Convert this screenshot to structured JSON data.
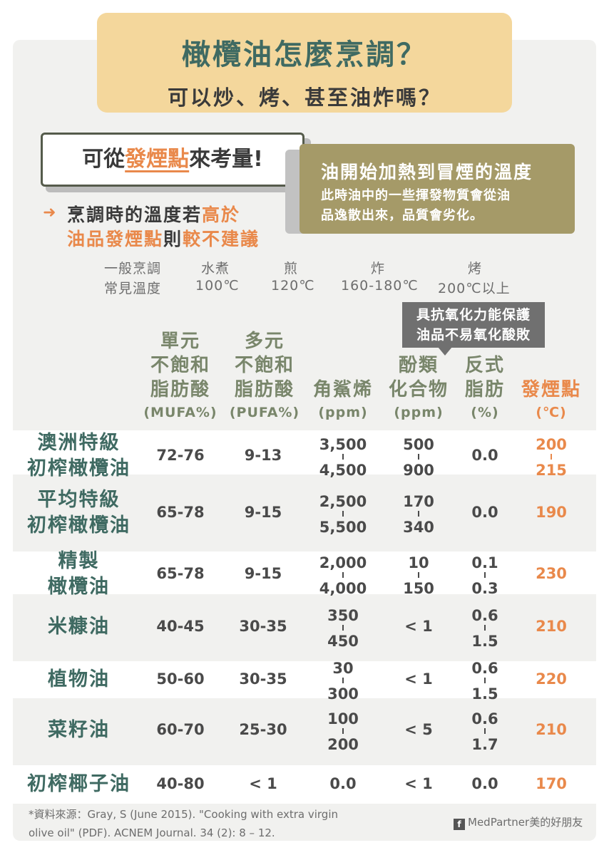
{
  "title": {
    "main": "橄欖油怎麼烹調？",
    "sub": "可以炒、烤、甚至油炸嗎？"
  },
  "consider": {
    "prefix": "可從",
    "highlight": "發煙點",
    "suffix": "來考量!"
  },
  "definition": {
    "title": "油開始加熱到冒煙的溫度",
    "line1": "此時油中的一些揮發物質會從油",
    "line2": "品逸散出來，品質會劣化。"
  },
  "advice": {
    "l1_a": "烹調時的溫度若",
    "l1_b": "高於",
    "l2_a": "油品發煙點",
    "l2_b": "則",
    "l2_c": "較不建議"
  },
  "cooking_temps": {
    "label1": "一般烹調",
    "label2": "常見溫度",
    "methods": [
      {
        "name": "水煮",
        "temp": "100℃"
      },
      {
        "name": "煎",
        "temp": "120℃"
      },
      {
        "name": "炸",
        "temp": "160-180℃"
      },
      {
        "name": "烤",
        "temp": "200℃以上"
      }
    ]
  },
  "callout": {
    "line1": "具抗氧化力能保護",
    "line2": "油品不易氧化酸敗"
  },
  "columns": [
    {
      "lines": [
        "單元",
        "不飽和",
        "脂肪酸"
      ],
      "unit": "(MUFA%)"
    },
    {
      "lines": [
        "多元",
        "不飽和",
        "脂肪酸"
      ],
      "unit": "(PUFA%)"
    },
    {
      "lines": [
        "角鯊烯"
      ],
      "unit": "(ppm)"
    },
    {
      "lines": [
        "酚類",
        "化合物"
      ],
      "unit": "(ppm)"
    },
    {
      "lines": [
        "反式",
        "脂肪"
      ],
      "unit": "(%)"
    },
    {
      "lines": [
        "發煙點"
      ],
      "unit": "(℃)"
    }
  ],
  "rows": [
    {
      "oil": [
        "澳洲特級",
        "初榨橄欖油"
      ],
      "mufa": "72-76",
      "pufa": "9-13",
      "squalene": [
        "3,500",
        "4,500"
      ],
      "phenolic": [
        "500",
        "900"
      ],
      "trans": [
        "0.0"
      ],
      "smoke": [
        "200",
        "215"
      ]
    },
    {
      "oil": [
        "平均特級",
        "初榨橄欖油"
      ],
      "mufa": "65-78",
      "pufa": "9-15",
      "squalene": [
        "2,500",
        "5,500"
      ],
      "phenolic": [
        "170",
        "340"
      ],
      "trans": [
        "0.0"
      ],
      "smoke": [
        "190"
      ]
    },
    {
      "oil": [
        "精製",
        "橄欖油"
      ],
      "mufa": "65-78",
      "pufa": "9-15",
      "squalene": [
        "2,000",
        "4,000"
      ],
      "phenolic": [
        "10",
        "150"
      ],
      "trans": [
        "0.1",
        "0.3"
      ],
      "smoke": [
        "230"
      ]
    },
    {
      "oil": [
        "米糠油"
      ],
      "mufa": "40-45",
      "pufa": "30-35",
      "squalene": [
        "350",
        "450"
      ],
      "phenolic": [
        "< 1"
      ],
      "trans": [
        "0.6",
        "1.5"
      ],
      "smoke": [
        "210"
      ]
    },
    {
      "oil": [
        "植物油"
      ],
      "mufa": "50-60",
      "pufa": "30-35",
      "squalene": [
        "30",
        "300"
      ],
      "phenolic": [
        "< 1"
      ],
      "trans": [
        "0.6",
        "1.5"
      ],
      "smoke": [
        "220"
      ]
    },
    {
      "oil": [
        "菜籽油"
      ],
      "mufa": "60-70",
      "pufa": "25-30",
      "squalene": [
        "100",
        "200"
      ],
      "phenolic": [
        "< 5"
      ],
      "trans": [
        "0.6",
        "1.7"
      ],
      "smoke": [
        "210"
      ]
    },
    {
      "oil": [
        "初榨椰子油"
      ],
      "mufa": "40-80",
      "pufa": "< 1",
      "squalene": [
        "0.0"
      ],
      "phenolic": [
        "< 1"
      ],
      "trans": [
        "0.0"
      ],
      "smoke": [
        "170"
      ]
    }
  ],
  "source": {
    "line1": "*資料來源：Gray, S (June 2015). \"Cooking with extra virgin",
    "line2": "olive oil\" (PDF). ACNEM Journal. 34 (2): 8 – 12."
  },
  "brand": {
    "fb": "f",
    "name": "MedPartner美的好朋友"
  },
  "colors": {
    "title_bg": "#f4d79c",
    "title_green": "#3f6a62",
    "accent_orange": "#e9894b",
    "header_green": "#79866b",
    "definition_bg": "#a59a68",
    "callout_bg": "#707070"
  }
}
